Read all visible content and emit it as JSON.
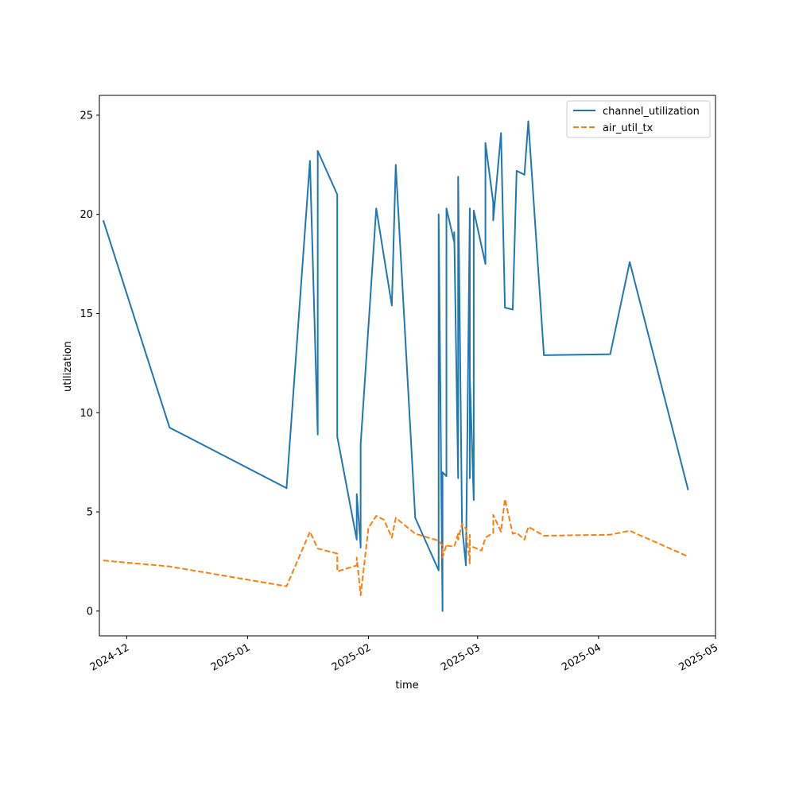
{
  "chart_data": {
    "type": "line",
    "title": "",
    "xlabel": "time",
    "ylabel": "utilization",
    "x_axis_type": "date",
    "xlim": [
      "2024-11-24",
      "2025-05-01"
    ],
    "ylim": [
      -1.25,
      26
    ],
    "x_ticks": [
      "2024-12",
      "2025-01",
      "2025-02",
      "2025-03",
      "2025-04",
      "2025-05"
    ],
    "y_ticks": [
      0,
      5,
      10,
      15,
      20,
      25
    ],
    "grid": false,
    "legend_position": "top-right",
    "series": [
      {
        "name": "channel_utilization",
        "color": "#1f77b4",
        "line_style": "solid",
        "x": [
          "2024-11-25",
          "2024-12-12",
          "2025-01-11",
          "2025-01-17",
          "2025-01-19",
          "2025-01-19",
          "2025-01-24",
          "2025-01-24",
          "2025-01-29",
          "2025-01-29",
          "2025-01-30",
          "2025-01-30",
          "2025-01-30",
          "2025-02-03",
          "2025-02-07",
          "2025-02-08",
          "2025-02-13",
          "2025-02-19",
          "2025-02-19",
          "2025-02-20",
          "2025-02-20",
          "2025-02-21",
          "2025-02-21",
          "2025-02-23",
          "2025-02-23",
          "2025-02-24",
          "2025-02-24",
          "2025-02-25",
          "2025-02-26",
          "2025-02-27",
          "2025-02-27",
          "2025-02-27",
          "2025-02-27",
          "2025-02-28",
          "2025-02-28",
          "2025-03-03",
          "2025-03-03",
          "2025-03-05",
          "2025-03-05",
          "2025-03-07",
          "2025-03-08",
          "2025-03-10",
          "2025-03-11",
          "2025-03-13",
          "2025-03-14",
          "2025-03-18",
          "2025-04-04",
          "2025-04-09",
          "2025-04-24"
        ],
        "values": [
          19.7,
          9.25,
          6.2,
          22.7,
          8.9,
          23.2,
          21.0,
          8.8,
          3.6,
          5.9,
          3.3,
          3.2,
          8.4,
          20.3,
          15.4,
          22.5,
          4.7,
          2.05,
          20.0,
          0.0,
          7.0,
          6.8,
          20.3,
          18.6,
          19.1,
          6.7,
          21.9,
          4.3,
          2.3,
          20.3,
          6.7,
          16.5,
          11.8,
          5.6,
          20.2,
          17.5,
          23.6,
          20.6,
          19.7,
          24.1,
          15.3,
          15.2,
          22.2,
          22.0,
          24.7,
          12.9,
          12.95,
          17.6,
          6.1
        ]
      },
      {
        "name": "air_util_tx",
        "color": "#ff7f0e",
        "line_style": "dashed",
        "x": [
          "2024-11-25",
          "2024-12-12",
          "2025-01-11",
          "2025-01-17",
          "2025-01-19",
          "2025-01-24",
          "2025-01-24",
          "2025-01-29",
          "2025-01-29",
          "2025-01-30",
          "2025-02-01",
          "2025-02-03",
          "2025-02-05",
          "2025-02-07",
          "2025-02-08",
          "2025-02-13",
          "2025-02-19",
          "2025-02-20",
          "2025-02-20",
          "2025-02-21",
          "2025-02-21",
          "2025-02-23",
          "2025-02-24",
          "2025-02-24",
          "2025-02-25",
          "2025-02-26",
          "2025-02-27",
          "2025-02-27",
          "2025-02-27",
          "2025-03-02",
          "2025-03-03",
          "2025-03-05",
          "2025-03-05",
          "2025-03-07",
          "2025-03-08",
          "2025-03-10",
          "2025-03-11",
          "2025-03-13",
          "2025-03-14",
          "2025-03-18",
          "2025-04-04",
          "2025-04-09",
          "2025-04-24"
        ],
        "values": [
          2.55,
          2.25,
          1.25,
          4.0,
          3.15,
          2.9,
          2.0,
          2.3,
          2.7,
          0.8,
          4.2,
          4.8,
          4.6,
          3.7,
          4.7,
          3.9,
          3.55,
          3.3,
          2.7,
          3.35,
          3.3,
          3.25,
          3.9,
          3.6,
          4.4,
          4.15,
          2.4,
          3.85,
          3.3,
          3.05,
          3.7,
          3.95,
          4.85,
          4.0,
          5.65,
          3.9,
          3.95,
          3.6,
          4.25,
          3.8,
          3.85,
          4.05,
          2.75
        ]
      }
    ]
  }
}
